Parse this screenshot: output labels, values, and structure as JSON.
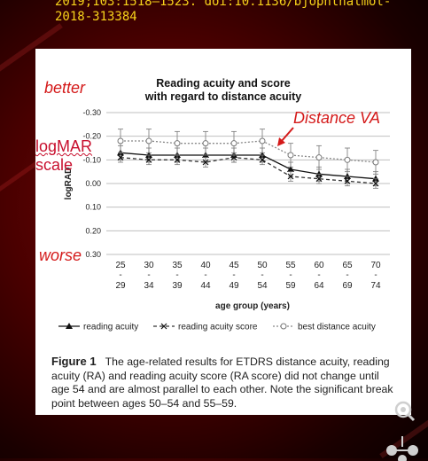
{
  "citation": {
    "line1": "2019;103:1518–1523. doi:10.1136/bjophthalmol-",
    "line2": "2018-313384"
  },
  "figure": {
    "title_line1": "Reading acuity and score",
    "title_line2": "with regard to distance acuity",
    "caption_label": "Figure 1",
    "caption_text": "The age-related results for ETDRS distance acuity, reading acuity (RA) and reading acuity score (RA score) did not change until age 54 and are almost parallel to each other. Note the significant break point between ages 50–54 and 55–59.",
    "xlabel": "age  group (years)",
    "ylabel": "logRAD",
    "legend": [
      "reading acuity",
      "reading acuity score",
      "best distance acuity"
    ]
  },
  "annotations": {
    "better": "better",
    "worse": "worse",
    "logmar_line1": "logMAR",
    "logmar_line2": "scale",
    "distance_va": "Distance VA"
  },
  "colors": {
    "annotation": "#d41a1a",
    "citation": "#f7d21a",
    "background": "#5a0000"
  },
  "icons": [
    "zoom-icon",
    "navigation-icon"
  ],
  "chart_data": {
    "type": "line",
    "categories_top": [
      "25",
      "30",
      "35",
      "40",
      "45",
      "50",
      "55",
      "60",
      "65",
      "70"
    ],
    "categories_sep": "-",
    "categories_bottom": [
      "29",
      "34",
      "39",
      "44",
      "49",
      "54",
      "59",
      "64",
      "69",
      "74"
    ],
    "ylim": [
      -0.3,
      0.3
    ],
    "y_inverted": true,
    "yticks": [
      "-0.30",
      "-0.20",
      "-0.10",
      "0.00",
      "0.10",
      "0.20",
      "0.30"
    ],
    "ytick_values": [
      -0.3,
      -0.2,
      -0.1,
      0.0,
      0.1,
      0.2,
      0.3
    ],
    "series": [
      {
        "name": "reading acuity",
        "values": [
          -0.13,
          -0.12,
          -0.12,
          -0.12,
          -0.12,
          -0.12,
          -0.06,
          -0.04,
          -0.03,
          -0.02
        ],
        "err": [
          0.03,
          0.03,
          0.03,
          0.03,
          0.03,
          0.03,
          0.03,
          0.03,
          0.03,
          0.03
        ]
      },
      {
        "name": "reading acuity score",
        "values": [
          -0.11,
          -0.1,
          -0.1,
          -0.09,
          -0.11,
          -0.1,
          -0.03,
          -0.02,
          -0.01,
          0.0
        ],
        "err": [
          0.02,
          0.02,
          0.02,
          0.02,
          0.02,
          0.02,
          0.02,
          0.02,
          0.02,
          0.02
        ]
      },
      {
        "name": "best distance acuity",
        "values": [
          -0.18,
          -0.18,
          -0.17,
          -0.17,
          -0.17,
          -0.18,
          -0.12,
          -0.11,
          -0.1,
          -0.09
        ],
        "err": [
          0.05,
          0.05,
          0.05,
          0.05,
          0.05,
          0.05,
          0.05,
          0.05,
          0.05,
          0.05
        ]
      }
    ]
  }
}
